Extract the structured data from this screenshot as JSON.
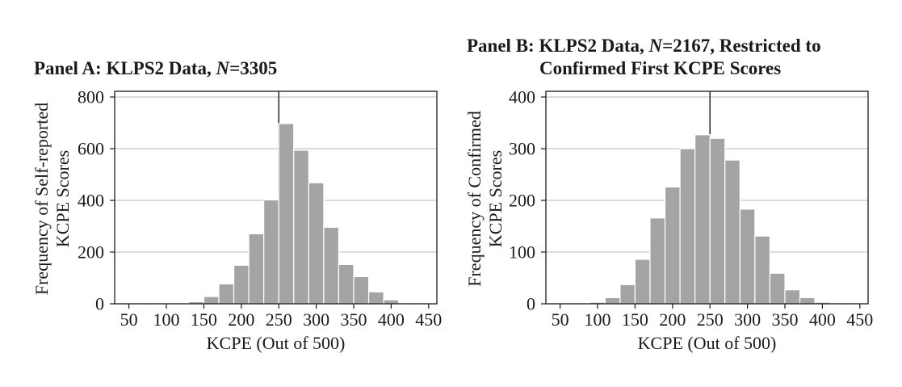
{
  "chart_data": [
    {
      "type": "bar",
      "title_lines": [
        "Panel A: KLPS2 Data, N=3305"
      ],
      "xlabel": "KCPE (Out of 500)",
      "ylabel_lines": [
        "Frequency of Self-reported",
        "KCPE Scores"
      ],
      "bin_width": 20,
      "x": [
        130,
        150,
        170,
        190,
        210,
        230,
        250,
        270,
        290,
        310,
        330,
        350,
        370,
        390
      ],
      "values": [
        8,
        28,
        77,
        149,
        271,
        402,
        697,
        594,
        468,
        296,
        152,
        105,
        46,
        15
      ],
      "xticks": [
        50,
        100,
        150,
        200,
        250,
        300,
        350,
        400,
        450
      ],
      "yticks": [
        0,
        200,
        400,
        600,
        800
      ],
      "xlim": [
        31,
        461
      ],
      "ylim": [
        0,
        822
      ],
      "reference_line_x": 250,
      "grid": "horizontal",
      "legend": "none",
      "colors": {
        "bar": "#a4a4a4",
        "bar_edge": "#ffffff",
        "grid": "#b9b9b9",
        "axis": "#1a1a1a",
        "reference_line": "#1a1a1a"
      }
    },
    {
      "type": "bar",
      "title_lines": [
        "Panel B: KLPS2 Data, N=2167, Restricted to",
        "Confirmed First KCPE Scores"
      ],
      "xlabel": "KCPE (Out of 500)",
      "ylabel_lines": [
        "Frequency of Confirmed",
        "KCPE Scores"
      ],
      "bin_width": 20,
      "x": [
        90,
        110,
        130,
        150,
        170,
        190,
        210,
        230,
        250,
        270,
        290,
        310,
        330,
        350,
        370,
        390
      ],
      "values": [
        3,
        12,
        37,
        86,
        166,
        226,
        300,
        327,
        320,
        278,
        183,
        131,
        59,
        27,
        12,
        3
      ],
      "xticks": [
        50,
        100,
        150,
        200,
        250,
        300,
        350,
        400,
        450
      ],
      "yticks": [
        0,
        100,
        200,
        300,
        400
      ],
      "xlim": [
        31,
        461
      ],
      "ylim": [
        0,
        411
      ],
      "reference_line_x": 250,
      "grid": "horizontal",
      "legend": "none",
      "colors": {
        "bar": "#a4a4a4",
        "bar_edge": "#ffffff",
        "grid": "#b9b9b9",
        "axis": "#1a1a1a",
        "reference_line": "#1a1a1a"
      }
    }
  ]
}
